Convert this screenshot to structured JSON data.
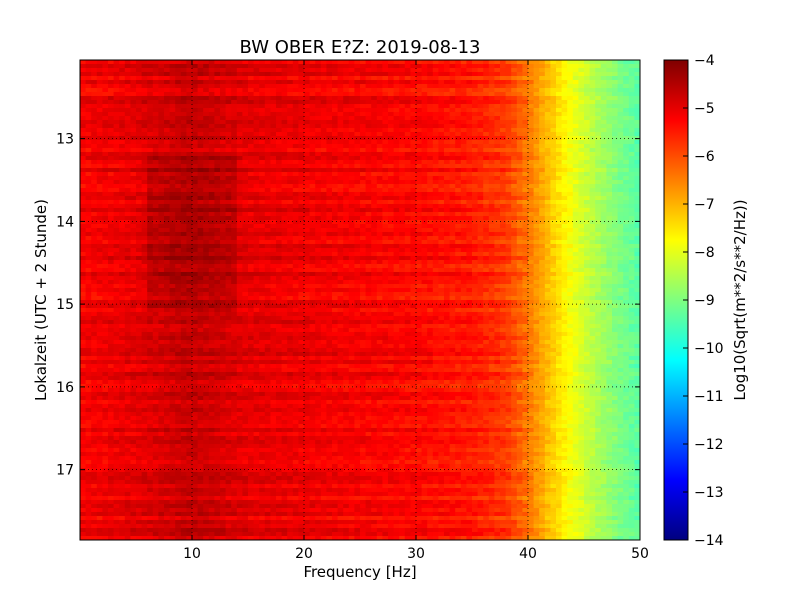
{
  "chart_data": {
    "type": "heatmap",
    "title": "BW OBER E?Z: 2019-08-13",
    "xlabel": "Frequency [Hz]",
    "ylabel": "Lokalzeit (UTC + 2 Stunde)",
    "xlim": [
      0,
      50
    ],
    "ylim": [
      17.85,
      12.05
    ],
    "x_ticks": [
      10,
      20,
      30,
      40,
      50
    ],
    "x_tick_labels": [
      "10",
      "20",
      "30",
      "40",
      "50"
    ],
    "y_ticks": [
      13,
      14,
      15,
      16,
      17
    ],
    "y_tick_labels": [
      "13",
      "14",
      "15",
      "16",
      "17"
    ],
    "grid": true,
    "colorbar": {
      "label": "Log10(Sqrt(m**2/s**2/Hz))",
      "range": [
        -14,
        -4
      ],
      "ticks": [
        -4,
        -5,
        -6,
        -7,
        -8,
        -9,
        -10,
        -11,
        -12,
        -13,
        -14
      ],
      "tick_labels": [
        "−4",
        "−5",
        "−6",
        "−7",
        "−8",
        "−9",
        "−10",
        "−11",
        "−12",
        "−13",
        "−14"
      ],
      "colormap": "jet",
      "colors": [
        "#00007f",
        "#0000ff",
        "#007fff",
        "#00ffff",
        "#7fff7f",
        "#ffff00",
        "#ff7f00",
        "#ff0000",
        "#7f0000"
      ]
    },
    "frequency_profile": {
      "frequencies": [
        0,
        5,
        10,
        15,
        20,
        25,
        30,
        35,
        38,
        40,
        42,
        44,
        46,
        48,
        50
      ],
      "values": [
        -5.2,
        -5.0,
        -4.7,
        -5.0,
        -5.1,
        -5.2,
        -5.3,
        -5.5,
        -5.8,
        -6.4,
        -7.2,
        -7.9,
        -8.5,
        -9.0,
        -9.4
      ]
    }
  }
}
